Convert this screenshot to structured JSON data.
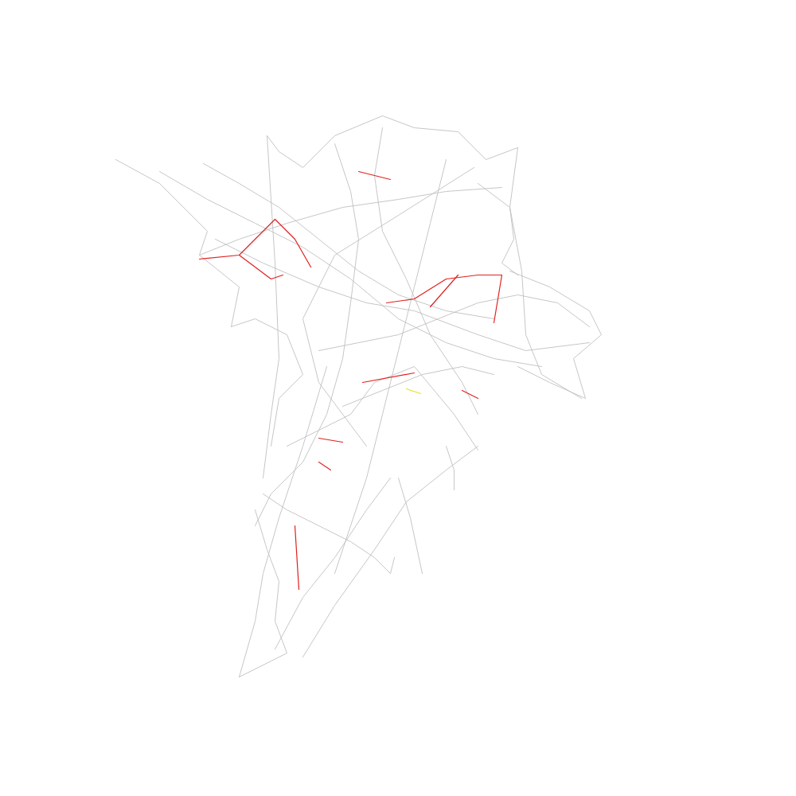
{
  "chart_data": {
    "type": "line",
    "tick_labels": false,
    "grid": false,
    "xlim": [
      0,
      1000
    ],
    "ylim": [
      0,
      1000
    ],
    "series": [
      {
        "color": "#c0c0c0",
        "values": [
          [
            145,
            200
          ],
          [
            200,
            230
          ],
          [
            260,
            290
          ],
          [
            250,
            320
          ],
          [
            300,
            360
          ],
          [
            290,
            410
          ]
        ]
      },
      {
        "color": "#c0c0c0",
        "values": [
          [
            335,
            170
          ],
          [
            350,
            190
          ],
          [
            380,
            210
          ],
          [
            420,
            170
          ],
          [
            480,
            145
          ],
          [
            520,
            160
          ],
          [
            575,
            165
          ],
          [
            610,
            200
          ],
          [
            650,
            185
          ]
        ]
      },
      {
        "color": "#c0c0c0",
        "values": [
          [
            250,
            320
          ],
          [
            300,
            300
          ],
          [
            360,
            280
          ],
          [
            430,
            260
          ],
          [
            500,
            250
          ],
          [
            560,
            240
          ],
          [
            630,
            235
          ]
        ]
      },
      {
        "color": "#c0c0c0",
        "values": [
          [
            255,
            205
          ],
          [
            300,
            230
          ],
          [
            350,
            260
          ],
          [
            400,
            300
          ],
          [
            450,
            340
          ],
          [
            500,
            370
          ],
          [
            560,
            390
          ],
          [
            620,
            400
          ]
        ]
      },
      {
        "color": "#c0c0c0",
        "values": [
          [
            200,
            215
          ],
          [
            260,
            250
          ],
          [
            320,
            280
          ],
          [
            380,
            310
          ],
          [
            440,
            350
          ],
          [
            500,
            400
          ],
          [
            560,
            430
          ],
          [
            620,
            450
          ],
          [
            680,
            460
          ]
        ]
      },
      {
        "color": "#c0c0c0",
        "values": [
          [
            640,
            340
          ],
          [
            690,
            360
          ],
          [
            740,
            390
          ],
          [
            755,
            420
          ],
          [
            720,
            450
          ],
          [
            735,
            500
          ],
          [
            690,
            480
          ],
          [
            650,
            460
          ]
        ]
      },
      {
        "color": "#c0c0c0",
        "values": [
          [
            420,
            180
          ],
          [
            440,
            240
          ],
          [
            450,
            300
          ],
          [
            440,
            380
          ],
          [
            430,
            450
          ],
          [
            410,
            520
          ],
          [
            380,
            580
          ],
          [
            340,
            620
          ],
          [
            320,
            660
          ]
        ]
      },
      {
        "color": "#c0c0c0",
        "values": [
          [
            560,
            200
          ],
          [
            540,
            280
          ],
          [
            520,
            360
          ],
          [
            500,
            440
          ],
          [
            480,
            520
          ],
          [
            460,
            600
          ],
          [
            440,
            660
          ],
          [
            420,
            720
          ]
        ]
      },
      {
        "color": "#c0c0c0",
        "values": [
          [
            330,
            620
          ],
          [
            360,
            640
          ],
          [
            400,
            660
          ],
          [
            440,
            680
          ],
          [
            470,
            700
          ],
          [
            490,
            720
          ],
          [
            495,
            700
          ]
        ]
      },
      {
        "color": "#c0c0c0",
        "values": [
          [
            320,
            640
          ],
          [
            335,
            690
          ],
          [
            350,
            730
          ],
          [
            345,
            780
          ],
          [
            360,
            820
          ],
          [
            300,
            850
          ]
        ]
      },
      {
        "color": "#c0c0c0",
        "values": [
          [
            300,
            850
          ],
          [
            320,
            780
          ],
          [
            330,
            720
          ],
          [
            350,
            650
          ],
          [
            380,
            560
          ],
          [
            410,
            460
          ]
        ]
      },
      {
        "color": "#c0c0c0",
        "values": [
          [
            380,
            825
          ],
          [
            420,
            760
          ],
          [
            470,
            690
          ],
          [
            510,
            630
          ],
          [
            560,
            590
          ],
          [
            600,
            560
          ]
        ]
      },
      {
        "color": "#c0c0c0",
        "values": [
          [
            345,
            815
          ],
          [
            380,
            750
          ],
          [
            420,
            700
          ],
          [
            460,
            640
          ],
          [
            490,
            600
          ]
        ]
      },
      {
        "color": "#c0c0c0",
        "values": [
          [
            500,
            600
          ],
          [
            515,
            650
          ],
          [
            530,
            720
          ]
        ]
      },
      {
        "color": "#c0c0c0",
        "values": [
          [
            560,
            560
          ],
          [
            570,
            590
          ],
          [
            570,
            615
          ]
        ]
      },
      {
        "color": "#c0c0c0",
        "values": [
          [
            290,
            410
          ],
          [
            320,
            400
          ],
          [
            360,
            420
          ],
          [
            380,
            470
          ],
          [
            350,
            500
          ],
          [
            340,
            560
          ]
        ]
      },
      {
        "color": "#c0c0c0",
        "values": [
          [
            600,
            230
          ],
          [
            640,
            260
          ],
          [
            645,
            300
          ],
          [
            630,
            330
          ],
          [
            650,
            345
          ]
        ]
      },
      {
        "color": "#c0c0c0",
        "values": [
          [
            480,
            160
          ],
          [
            470,
            220
          ],
          [
            480,
            290
          ],
          [
            510,
            350
          ],
          [
            540,
            420
          ],
          [
            580,
            480
          ],
          [
            600,
            520
          ]
        ]
      },
      {
        "color": "#c0c0c0",
        "values": [
          [
            400,
            440
          ],
          [
            450,
            430
          ],
          [
            500,
            420
          ],
          [
            550,
            400
          ],
          [
            600,
            380
          ],
          [
            650,
            370
          ],
          [
            700,
            380
          ],
          [
            740,
            410
          ]
        ]
      },
      {
        "color": "#c0c0c0",
        "values": [
          [
            650,
            185
          ],
          [
            640,
            260
          ],
          [
            655,
            340
          ],
          [
            660,
            420
          ],
          [
            680,
            470
          ],
          [
            730,
            500
          ]
        ]
      },
      {
        "color": "#c0c0c0",
        "values": [
          [
            335,
            170
          ],
          [
            345,
            330
          ],
          [
            350,
            450
          ],
          [
            340,
            520
          ],
          [
            330,
            600
          ]
        ]
      },
      {
        "color": "#c0c0c0",
        "values": [
          [
            595,
            210
          ],
          [
            500,
            270
          ],
          [
            420,
            320
          ],
          [
            380,
            400
          ],
          [
            400,
            480
          ],
          [
            460,
            560
          ]
        ]
      },
      {
        "color": "#c0c0c0",
        "values": [
          [
            270,
            300
          ],
          [
            330,
            330
          ],
          [
            400,
            360
          ],
          [
            460,
            380
          ],
          [
            520,
            390
          ],
          [
            600,
            420
          ],
          [
            660,
            440
          ],
          [
            740,
            430
          ]
        ]
      },
      {
        "color": "#c0c0c0",
        "values": [
          [
            430,
            510
          ],
          [
            480,
            490
          ],
          [
            530,
            470
          ],
          [
            580,
            460
          ],
          [
            620,
            470
          ]
        ]
      },
      {
        "color": "#c0c0c0",
        "values": [
          [
            360,
            560
          ],
          [
            400,
            540
          ],
          [
            440,
            520
          ],
          [
            470,
            480
          ],
          [
            520,
            460
          ],
          [
            570,
            520
          ],
          [
            600,
            565
          ]
        ]
      },
      {
        "color": "#e02020",
        "values": [
          [
            250,
            325
          ],
          [
            300,
            320
          ],
          [
            345,
            275
          ],
          [
            370,
            300
          ],
          [
            390,
            335
          ]
        ]
      },
      {
        "color": "#e02020",
        "values": [
          [
            485,
            380
          ],
          [
            520,
            375
          ],
          [
            560,
            350
          ],
          [
            600,
            345
          ],
          [
            630,
            345
          ],
          [
            620,
            405
          ]
        ]
      },
      {
        "color": "#e02020",
        "values": [
          [
            400,
            550
          ],
          [
            430,
            555
          ]
        ]
      },
      {
        "color": "#e02020",
        "values": [
          [
            455,
            480
          ],
          [
            520,
            468
          ]
        ]
      },
      {
        "color": "#e02020",
        "values": [
          [
            540,
            385
          ],
          [
            575,
            345
          ]
        ]
      },
      {
        "color": "#e02020",
        "values": [
          [
            450,
            215
          ],
          [
            490,
            225
          ]
        ]
      },
      {
        "color": "#e02020",
        "values": [
          [
            400,
            580
          ],
          [
            415,
            590
          ]
        ]
      },
      {
        "color": "#e02020",
        "values": [
          [
            370,
            660
          ],
          [
            375,
            740
          ]
        ]
      },
      {
        "color": "#e02020",
        "values": [
          [
            300,
            320
          ],
          [
            340,
            350
          ],
          [
            355,
            345
          ]
        ]
      },
      {
        "color": "#e02020",
        "values": [
          [
            580,
            490
          ],
          [
            600,
            500
          ]
        ]
      },
      {
        "color": "#e8e020",
        "values": [
          [
            510,
            488
          ],
          [
            528,
            494
          ]
        ]
      }
    ]
  }
}
